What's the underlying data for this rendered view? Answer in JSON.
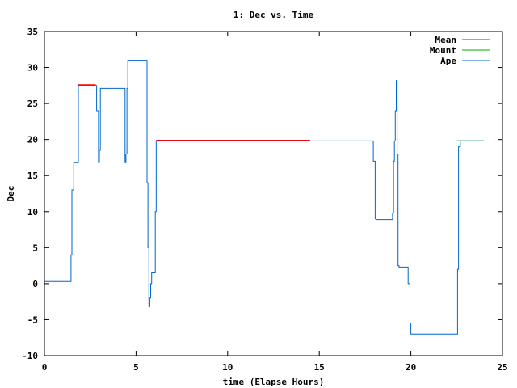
{
  "chart_data": {
    "type": "line",
    "title": "1: Dec vs. Time",
    "xlabel": "time (Elapse Hours)",
    "ylabel": "Dec",
    "xlim": [
      0,
      25
    ],
    "ylim": [
      -10,
      35
    ],
    "xticks": [
      0,
      5,
      10,
      15,
      20,
      25
    ],
    "yticks": [
      -10,
      -5,
      0,
      5,
      10,
      15,
      20,
      25,
      30,
      35
    ],
    "grid": false,
    "legend_position": "top-right",
    "series": [
      {
        "name": "Mean",
        "color": "#ff0000",
        "x": [
          1.8,
          2.8,
          6.1,
          14.5
        ],
        "y": [
          27.6,
          27.6,
          19.9,
          19.9
        ],
        "segments": [
          [
            0,
            1
          ],
          [
            2,
            3
          ]
        ]
      },
      {
        "name": "Mount",
        "color": "#00b000",
        "x": [
          22.5,
          24.0
        ],
        "y": [
          19.8,
          19.8
        ],
        "segments": [
          [
            0,
            1
          ]
        ]
      },
      {
        "name": "Ape",
        "color": "#0066cc",
        "x": [
          0.0,
          1.35,
          1.45,
          1.5,
          1.6,
          1.75,
          1.85,
          2.0,
          2.8,
          2.85,
          2.95,
          3.0,
          3.05,
          3.2,
          4.3,
          4.4,
          4.45,
          4.5,
          4.55,
          4.6,
          5.5,
          5.6,
          5.65,
          5.7,
          5.75,
          5.8,
          5.85,
          5.95,
          6.05,
          6.1,
          6.2,
          17.9,
          17.95,
          18.05,
          18.1,
          18.9,
          19.0,
          19.05,
          19.1,
          19.15,
          19.2,
          19.25,
          19.3,
          19.35,
          19.45,
          19.75,
          19.85,
          19.95,
          20.0,
          22.5,
          22.55,
          22.6,
          22.7,
          24.0
        ],
        "y": [
          0.3,
          0.3,
          4.0,
          13.0,
          16.8,
          16.8,
          27.5,
          27.5,
          27.5,
          24.0,
          16.8,
          18.5,
          27.1,
          27.1,
          27.1,
          16.8,
          18.0,
          27.1,
          31.0,
          31.0,
          31.0,
          14.0,
          5.0,
          -3.2,
          -2.0,
          0.0,
          1.5,
          1.5,
          10.0,
          19.8,
          19.8,
          19.8,
          17.0,
          9.0,
          8.9,
          8.9,
          9.8,
          17.0,
          19.8,
          24.0,
          28.2,
          18.0,
          2.5,
          2.3,
          2.3,
          2.3,
          0.0,
          -5.5,
          -7.0,
          -7.0,
          2.0,
          19.0,
          19.8,
          19.8
        ]
      }
    ]
  }
}
